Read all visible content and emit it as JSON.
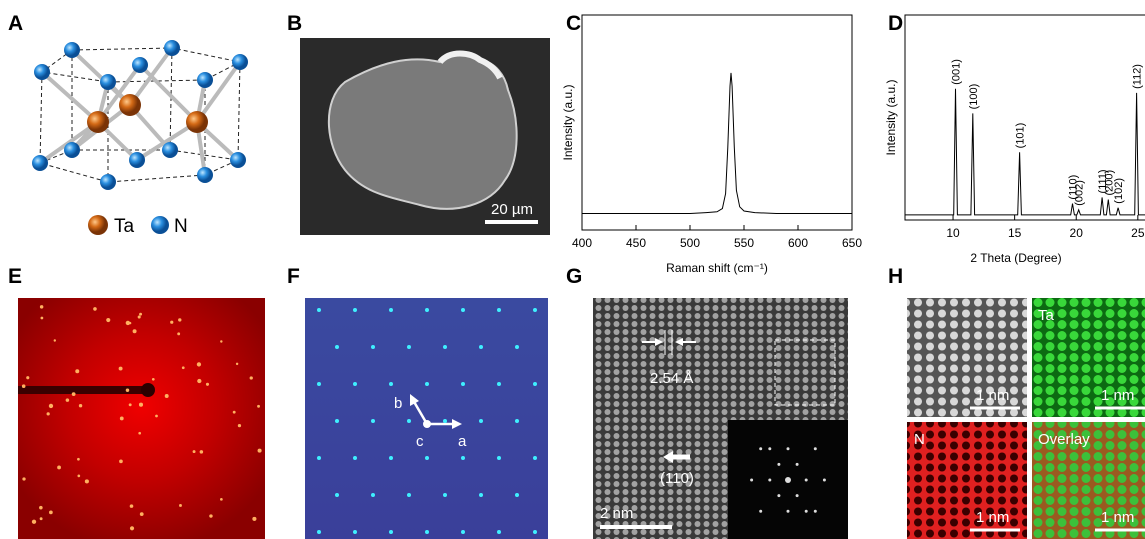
{
  "panel_labels": [
    "A",
    "B",
    "C",
    "D",
    "E",
    "F",
    "G",
    "H"
  ],
  "panel_a": {
    "legend": [
      "Ta",
      "N"
    ]
  },
  "panel_b": {
    "scale_bar": "20 µm"
  },
  "panel_f": {
    "axes": [
      "b",
      "c",
      "a"
    ]
  },
  "panel_g": {
    "spacing": "2.54 Å",
    "direction": "(110)",
    "scale_bar": "2 nm"
  },
  "panel_h": {
    "channels": [
      "Ta",
      "N",
      "Overlay"
    ],
    "scale_bars": [
      "1 nm",
      "1 nm",
      "1 nm",
      "1 nm"
    ]
  },
  "chart_data": [
    {
      "type": "line",
      "x_label": "Raman shift (cm⁻¹)",
      "y_label": "Intensity (a.u.)",
      "color": "#000000",
      "x": [
        400,
        420,
        440,
        460,
        480,
        500,
        515,
        525,
        530,
        533,
        535,
        537,
        538,
        539,
        541,
        543,
        546,
        550,
        560,
        580,
        600,
        620,
        640,
        650
      ],
      "values": [
        0.1,
        0.1,
        0.1,
        0.1,
        0.1,
        0.1,
        0.105,
        0.11,
        0.13,
        0.22,
        0.5,
        0.87,
        0.95,
        0.87,
        0.5,
        0.24,
        0.14,
        0.115,
        0.105,
        0.1,
        0.1,
        0.1,
        0.1,
        0.1
      ],
      "xlim": [
        400,
        650
      ],
      "xticks": [
        400,
        450,
        500,
        550,
        600,
        650
      ],
      "ylim": [
        0,
        1.3
      ]
    },
    {
      "type": "line",
      "x_label": "2 Theta (Degree)",
      "y_label": "Intensity (a.u.)",
      "color": "#000000",
      "x": [
        6.1,
        10.05,
        10.2,
        10.35,
        11.45,
        11.6,
        11.75,
        15.25,
        15.4,
        15.55,
        19.55,
        19.7,
        19.85,
        20.05,
        20.2,
        20.35,
        21.95,
        22.1,
        22.25,
        22.45,
        22.6,
        22.75,
        23.25,
        23.4,
        23.55,
        24.75,
        24.9,
        25.05,
        26.8
      ],
      "values": [
        0.025,
        0.025,
        0.64,
        0.025,
        0.025,
        0.52,
        0.025,
        0.025,
        0.33,
        0.025,
        0.025,
        0.08,
        0.025,
        0.025,
        0.05,
        0.025,
        0.025,
        0.11,
        0.025,
        0.025,
        0.1,
        0.025,
        0.025,
        0.06,
        0.025,
        0.025,
        0.62,
        0.025,
        0.025
      ],
      "xlim": [
        6.1,
        26.8
      ],
      "xticks": [
        10,
        15,
        20,
        25
      ],
      "ylim": [
        0,
        1
      ],
      "peak_labels": [
        "(001)",
        "(100)",
        "(101)",
        "(110)",
        "(002)",
        "(111)",
        "(200)",
        "(102)",
        "(112)"
      ],
      "peak_x": [
        10.2,
        11.6,
        15.4,
        19.7,
        20.2,
        22.1,
        22.6,
        23.4,
        24.9
      ]
    }
  ]
}
